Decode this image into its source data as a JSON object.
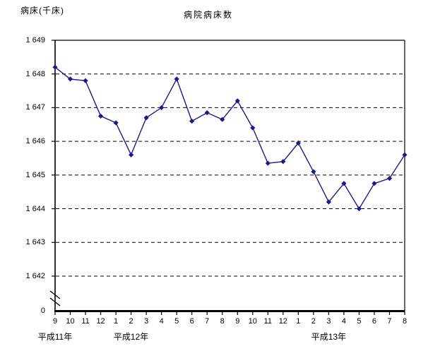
{
  "chart_data": {
    "type": "line",
    "title": "病院病床数",
    "ylabel": "病床(千床)",
    "grid": "horizontal-dashed",
    "legend": "none",
    "x": {
      "month_labels": [
        "9",
        "10",
        "11",
        "12",
        "1",
        "2",
        "3",
        "4",
        "5",
        "6",
        "7",
        "8",
        "9",
        "10",
        "11",
        "12",
        "1",
        "2",
        "3",
        "4",
        "5",
        "6",
        "7",
        "8"
      ],
      "era_labels": [
        {
          "label": "平成11年",
          "index": 0
        },
        {
          "label": "平成12年",
          "index": 5
        },
        {
          "label": "平成13年",
          "index": 18
        }
      ]
    },
    "y": {
      "tick_values": [
        1649,
        1648,
        1647,
        1646,
        1645,
        1644,
        1643,
        1642
      ],
      "tick_labels": [
        "1 649",
        "1 648",
        "1 647",
        "1 646",
        "1 645",
        "1 644",
        "1 643",
        "1 642"
      ],
      "origin_label": "0",
      "axis_break": true,
      "ylim_shown": [
        1642,
        1649
      ]
    },
    "series": [
      {
        "name": "病院病床数",
        "values": [
          1648.2,
          1647.85,
          1647.8,
          1646.75,
          1646.55,
          1645.6,
          1646.7,
          1647.0,
          1647.85,
          1646.6,
          1646.85,
          1646.65,
          1647.2,
          1646.4,
          1645.35,
          1645.4,
          1645.95,
          1645.1,
          1644.2,
          1644.75,
          1644.0,
          1644.75,
          1644.9,
          1645.6
        ]
      }
    ],
    "style": {
      "line_color": "#1a1a8c",
      "marker": "diamond",
      "grid_color": "#000000",
      "axis_color": "#000000",
      "background": "#ffffff"
    }
  }
}
